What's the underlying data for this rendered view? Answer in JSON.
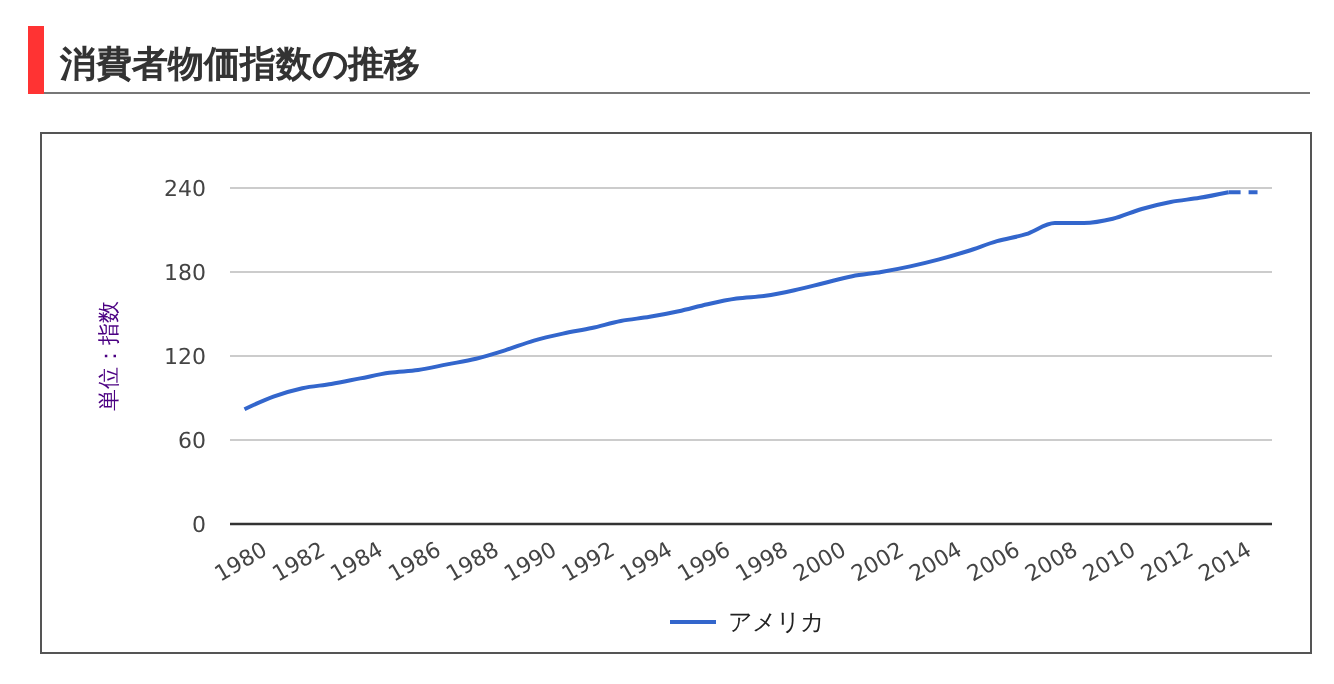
{
  "chart_data": {
    "type": "line",
    "title": "消費者物価指数の推移",
    "ylabel": "単位：指数",
    "xlim": [
      1979.5,
      2015.5
    ],
    "xticks": [
      1980,
      1982,
      1984,
      1986,
      1988,
      1990,
      1992,
      1994,
      1996,
      1998,
      2000,
      2002,
      2004,
      2006,
      2008,
      2010,
      2012,
      2014
    ],
    "ylim": [
      0,
      240
    ],
    "yticks": [
      0,
      60,
      120,
      180,
      240
    ],
    "grid": "y",
    "legend": "bottom",
    "line_style": "solid",
    "series": [
      {
        "name": "アメリカ",
        "color": "#3366cc",
        "x": [
          1980,
          1981,
          1982,
          1983,
          1984,
          1985,
          1986,
          1987,
          1988,
          1989,
          1990,
          1991,
          1992,
          1993,
          1994,
          1995,
          1996,
          1997,
          1998,
          1999,
          2000,
          2001,
          2002,
          2003,
          2004,
          2005,
          2006,
          2007,
          2008,
          2009,
          2010,
          2011,
          2012,
          2013,
          2014
        ],
        "values": [
          82,
          91,
          97,
          100,
          104,
          108,
          110,
          114,
          118,
          124,
          131,
          136,
          140,
          145,
          148,
          152,
          157,
          161,
          163,
          167,
          172,
          177,
          180,
          184,
          189,
          195,
          202,
          207,
          215,
          215,
          218,
          225,
          230,
          233,
          237
        ]
      },
      {
        "color": "#3366cc",
        "line_style": "dashed",
        "x": [
          2014,
          2015
        ],
        "values": [
          237,
          237
        ]
      }
    ]
  }
}
